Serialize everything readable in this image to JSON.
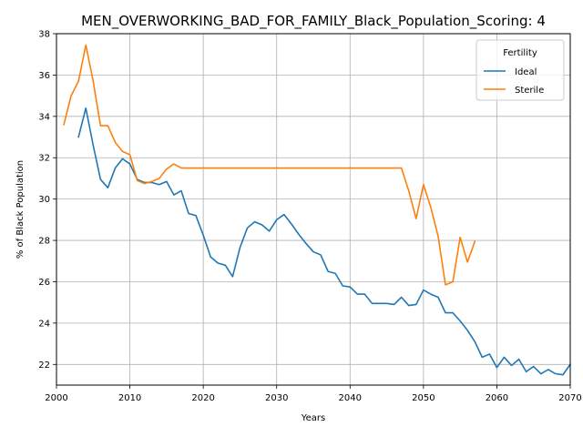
{
  "chart_data": {
    "type": "line",
    "title": "MEN_OVERWORKING_BAD_FOR_FAMILY_Black_Population_Scoring: 4",
    "xlabel": "Years",
    "ylabel": "% of Black Population",
    "xlim": [
      2000,
      2070
    ],
    "ylim": [
      21,
      38
    ],
    "xticks": [
      2000,
      2010,
      2020,
      2030,
      2040,
      2050,
      2060,
      2070
    ],
    "yticks": [
      22,
      24,
      26,
      28,
      30,
      32,
      34,
      36,
      38
    ],
    "grid": true,
    "legend": {
      "title": "Fertility",
      "placement": "top-right"
    },
    "series": [
      {
        "name": "Ideal",
        "color": "#1f77b4",
        "x": [
          2003,
          2004,
          2005,
          2006,
          2007,
          2008,
          2009,
          2010,
          2011,
          2012,
          2013,
          2014,
          2015,
          2016,
          2017,
          2018,
          2019,
          2020,
          2021,
          2022,
          2023,
          2024,
          2025,
          2026,
          2027,
          2028,
          2029,
          2030,
          2031,
          2032,
          2033,
          2034,
          2035,
          2036,
          2037,
          2038,
          2039,
          2040,
          2041,
          2042,
          2043,
          2044,
          2045,
          2046,
          2047,
          2048,
          2049,
          2050,
          2051,
          2052,
          2053,
          2054,
          2055,
          2056,
          2057,
          2058,
          2059,
          2060,
          2061,
          2062,
          2063,
          2064,
          2065,
          2066,
          2067,
          2068,
          2069,
          2070
        ],
        "y": [
          33.0,
          34.4,
          32.6,
          30.95,
          30.55,
          31.5,
          31.95,
          31.7,
          30.95,
          30.8,
          30.8,
          30.7,
          30.85,
          30.2,
          30.4,
          29.3,
          29.2,
          28.25,
          27.2,
          26.9,
          26.8,
          26.25,
          27.65,
          28.6,
          28.9,
          28.75,
          28.45,
          29.0,
          29.25,
          28.8,
          28.3,
          27.85,
          27.45,
          27.3,
          26.5,
          26.4,
          25.8,
          25.75,
          25.4,
          25.4,
          24.95,
          24.95,
          24.95,
          24.9,
          25.25,
          24.85,
          24.9,
          25.6,
          25.4,
          25.25,
          24.5,
          24.5,
          24.1,
          23.65,
          23.1,
          22.35,
          22.5,
          21.85,
          22.35,
          21.95,
          22.25,
          21.65,
          21.9,
          21.55,
          21.75,
          21.55,
          21.5,
          22.0
        ]
      },
      {
        "name": "Sterile",
        "color": "#ff7f0e",
        "x": [
          2001,
          2002,
          2003,
          2004,
          2005,
          2006,
          2007,
          2008,
          2009,
          2010,
          2011,
          2012,
          2013,
          2014,
          2015,
          2016,
          2017,
          2018,
          2019,
          2020,
          2021,
          2022,
          2023,
          2024,
          2025,
          2026,
          2027,
          2028,
          2029,
          2030,
          2031,
          2032,
          2033,
          2034,
          2035,
          2036,
          2037,
          2038,
          2039,
          2040,
          2041,
          2042,
          2043,
          2044,
          2045,
          2046,
          2047,
          2048,
          2049,
          2050,
          2051,
          2052,
          2053,
          2054,
          2055,
          2056,
          2057
        ],
        "y": [
          33.6,
          35.0,
          35.7,
          37.45,
          35.7,
          33.55,
          33.55,
          32.75,
          32.3,
          32.15,
          30.9,
          30.75,
          30.85,
          31.0,
          31.45,
          31.7,
          31.5,
          31.5,
          31.5,
          31.5,
          31.5,
          31.5,
          31.5,
          31.5,
          31.5,
          31.5,
          31.5,
          31.5,
          31.5,
          31.5,
          31.5,
          31.5,
          31.5,
          31.5,
          31.5,
          31.5,
          31.5,
          31.5,
          31.5,
          31.5,
          31.5,
          31.5,
          31.5,
          31.5,
          31.5,
          31.5,
          31.5,
          30.4,
          29.05,
          30.7,
          29.6,
          28.2,
          25.85,
          26.0,
          28.15,
          26.95,
          27.95
        ]
      }
    ]
  }
}
